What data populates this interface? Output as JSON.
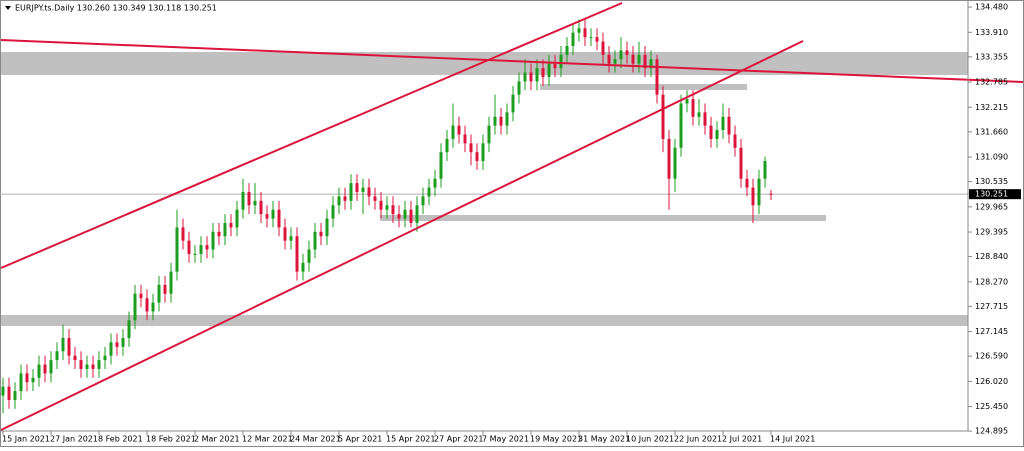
{
  "chart_data": {
    "type": "candlestick",
    "title": "EURJPY.ts.Daily  130.260 130.349 130.118 130.251",
    "bull_color": "#1e9c1e",
    "bear_color": "#dc143c",
    "ylim": [
      124.92,
      134.64
    ],
    "yticks": [
      {
        "value": 134.48,
        "label": "134.480"
      },
      {
        "value": 133.91,
        "label": "133.910"
      },
      133.355,
      132.785,
      132.215,
      {
        "value": 131.66,
        "label": "131.660"
      },
      {
        "value": 131.09,
        "label": "131.090"
      },
      130.535,
      129.965,
      129.395,
      {
        "value": 128.84,
        "label": "128.840"
      },
      {
        "value": 128.27,
        "label": "128.270"
      },
      127.715,
      127.145,
      {
        "value": 126.59,
        "label": "126.590"
      },
      {
        "value": 126.02,
        "label": "126.020"
      },
      {
        "value": 125.45,
        "label": "125.450"
      },
      124.895
    ],
    "categories": [
      "15 Jan 2021",
      null,
      null,
      null,
      null,
      null,
      null,
      null,
      "27 Jan 2021",
      null,
      null,
      null,
      null,
      null,
      null,
      null,
      "8 Feb 2021",
      null,
      null,
      null,
      null,
      null,
      null,
      null,
      "18 Feb 2021",
      null,
      null,
      null,
      null,
      null,
      null,
      null,
      "2 Mar 2021",
      null,
      null,
      null,
      null,
      null,
      null,
      null,
      "12 Mar 2021",
      null,
      null,
      null,
      null,
      null,
      null,
      null,
      "24 Mar 2021",
      null,
      null,
      null,
      null,
      null,
      null,
      null,
      "5 Apr 2021",
      null,
      null,
      null,
      null,
      null,
      null,
      null,
      "15 Apr 2021",
      null,
      null,
      null,
      null,
      null,
      null,
      null,
      "27 Apr 2021",
      null,
      null,
      null,
      null,
      null,
      null,
      null,
      "7 May 2021",
      null,
      null,
      null,
      null,
      null,
      null,
      null,
      "19 May 2021",
      null,
      null,
      null,
      null,
      null,
      null,
      null,
      "31 May 2021",
      null,
      null,
      null,
      null,
      null,
      null,
      null,
      "10 Jun 2021",
      null,
      null,
      null,
      null,
      null,
      null,
      null,
      "22 Jun 2021",
      null,
      null,
      null,
      null,
      null,
      null,
      null,
      "2 Jul 2021",
      null,
      null,
      null,
      null,
      null,
      null,
      null,
      "14 Jul 2021"
    ],
    "open": [
      125.7,
      125.9,
      125.6,
      125.8,
      126.2,
      126.0,
      126.1,
      126.4,
      126.2,
      126.5,
      126.7,
      127.0,
      126.6,
      126.5,
      126.3,
      126.4,
      126.3,
      126.5,
      126.6,
      126.9,
      126.8,
      127.0,
      127.4,
      128.0,
      127.9,
      127.6,
      127.8,
      128.2,
      128.0,
      128.5,
      129.5,
      129.2,
      128.9,
      128.9,
      129.1,
      129.0,
      129.4,
      129.3,
      129.6,
      129.5,
      129.9,
      130.3,
      130.0,
      130.1,
      129.8,
      129.7,
      129.9,
      129.5,
      129.2,
      129.3,
      128.5,
      128.7,
      129.0,
      129.4,
      129.3,
      129.7,
      130.0,
      130.2,
      130.1,
      130.5,
      130.3,
      130.4,
      130.2,
      130.1,
      129.9,
      130.0,
      129.8,
      129.7,
      129.9,
      129.6,
      130.0,
      130.2,
      130.4,
      130.6,
      131.2,
      131.5,
      131.8,
      131.6,
      131.4,
      131.2,
      131.0,
      131.4,
      131.8,
      132.0,
      131.8,
      132.1,
      132.5,
      132.8,
      133.0,
      132.8,
      133.1,
      132.9,
      133.2,
      133.1,
      133.4,
      133.6,
      133.9,
      134.0,
      133.8,
      133.8,
      133.7,
      133.4,
      133.2,
      133.3,
      133.5,
      133.4,
      133.2,
      133.4,
      133.1,
      133.3,
      132.5,
      131.5,
      130.6,
      131.3,
      132.3,
      132.4,
      132.0,
      132.1,
      131.8,
      131.5,
      131.7,
      132.0,
      131.6,
      131.3,
      130.6,
      130.4,
      130.0,
      130.6,
      130.26
    ],
    "high": [
      126.1,
      126.1,
      126.0,
      126.4,
      126.4,
      126.3,
      126.6,
      126.6,
      126.7,
      126.9,
      127.3,
      127.2,
      126.8,
      126.7,
      126.6,
      126.6,
      126.7,
      126.8,
      127.1,
      127.1,
      127.2,
      127.6,
      128.2,
      128.2,
      128.1,
      128.0,
      128.4,
      128.4,
      128.7,
      129.9,
      129.7,
      129.4,
      129.1,
      129.3,
      129.3,
      129.6,
      129.6,
      129.8,
      129.8,
      130.1,
      130.6,
      130.5,
      130.5,
      130.3,
      130.0,
      130.1,
      130.1,
      129.7,
      129.5,
      129.5,
      128.9,
      129.2,
      129.6,
      129.6,
      129.9,
      130.2,
      130.4,
      130.4,
      130.7,
      130.7,
      130.6,
      130.6,
      130.4,
      130.3,
      130.2,
      130.2,
      130.0,
      130.1,
      130.1,
      130.2,
      130.4,
      130.6,
      130.8,
      131.4,
      131.7,
      132.3,
      132.0,
      131.8,
      131.6,
      131.4,
      131.6,
      132.0,
      132.5,
      132.2,
      132.3,
      132.7,
      133.0,
      133.3,
      133.2,
      133.3,
      133.3,
      133.4,
      133.4,
      133.6,
      133.8,
      134.1,
      134.2,
      134.2,
      134.0,
      134.0,
      133.9,
      133.6,
      133.5,
      133.8,
      133.7,
      133.6,
      133.7,
      133.6,
      133.5,
      133.4,
      132.7,
      131.7,
      131.5,
      132.5,
      132.6,
      132.6,
      132.4,
      132.3,
      132.0,
      131.9,
      132.3,
      132.2,
      131.8,
      131.5,
      130.8,
      130.6,
      130.8,
      131.1,
      130.349
    ],
    "low": [
      125.3,
      125.4,
      125.4,
      125.6,
      125.8,
      125.8,
      125.9,
      126.0,
      126.0,
      126.3,
      126.5,
      126.4,
      126.3,
      126.1,
      126.1,
      126.1,
      126.1,
      126.3,
      126.4,
      126.6,
      126.6,
      126.8,
      127.2,
      127.7,
      127.4,
      127.4,
      127.6,
      127.8,
      127.8,
      128.3,
      129.0,
      128.7,
      128.7,
      128.7,
      128.8,
      128.8,
      129.1,
      129.1,
      129.3,
      129.3,
      129.7,
      129.8,
      129.8,
      129.6,
      129.5,
      129.5,
      129.3,
      129.0,
      129.0,
      128.3,
      128.3,
      128.5,
      128.8,
      129.1,
      129.1,
      129.5,
      129.8,
      129.9,
      129.9,
      130.1,
      129.8,
      130.0,
      129.9,
      129.7,
      129.7,
      129.6,
      129.5,
      129.5,
      129.5,
      129.4,
      129.8,
      130.0,
      130.2,
      130.4,
      131.0,
      131.3,
      131.4,
      131.2,
      130.9,
      130.8,
      130.8,
      131.2,
      131.6,
      131.6,
      131.6,
      131.9,
      132.3,
      132.6,
      132.6,
      132.6,
      132.7,
      132.7,
      132.9,
      132.9,
      133.2,
      133.4,
      133.7,
      133.6,
      133.6,
      133.5,
      133.2,
      133.0,
      133.0,
      133.1,
      133.2,
      133.0,
      133.0,
      132.9,
      132.9,
      132.3,
      131.2,
      129.9,
      130.3,
      131.1,
      132.1,
      131.8,
      131.8,
      131.6,
      131.3,
      131.3,
      131.5,
      131.4,
      131.1,
      130.4,
      130.2,
      129.6,
      129.8,
      130.4,
      130.118
    ],
    "close": [
      125.9,
      125.6,
      125.8,
      126.2,
      126.0,
      126.1,
      126.4,
      126.2,
      126.5,
      126.7,
      127.0,
      126.6,
      126.5,
      126.3,
      126.4,
      126.3,
      126.5,
      126.6,
      126.9,
      126.8,
      127.0,
      127.4,
      128.0,
      127.9,
      127.6,
      127.8,
      128.2,
      128.0,
      128.5,
      129.5,
      129.2,
      128.9,
      128.9,
      129.1,
      129.0,
      129.4,
      129.3,
      129.6,
      129.5,
      129.9,
      130.3,
      130.0,
      130.1,
      129.8,
      129.7,
      129.9,
      129.5,
      129.2,
      129.3,
      128.5,
      128.7,
      129.0,
      129.4,
      129.3,
      129.7,
      130.0,
      130.2,
      130.1,
      130.5,
      130.3,
      130.4,
      130.2,
      130.1,
      129.9,
      130.0,
      129.8,
      129.7,
      129.9,
      129.6,
      130.0,
      130.2,
      130.4,
      130.6,
      131.2,
      131.5,
      131.8,
      131.6,
      131.4,
      131.2,
      131.0,
      131.4,
      131.8,
      132.0,
      131.8,
      132.1,
      132.5,
      132.8,
      133.0,
      132.8,
      133.1,
      132.9,
      133.2,
      133.1,
      133.4,
      133.6,
      133.9,
      134.0,
      133.8,
      133.8,
      133.7,
      133.4,
      133.2,
      133.3,
      133.5,
      133.4,
      133.2,
      133.4,
      133.1,
      133.3,
      132.5,
      131.5,
      130.6,
      131.3,
      132.3,
      132.4,
      132.0,
      132.1,
      131.8,
      131.5,
      131.7,
      132.0,
      131.6,
      131.3,
      130.6,
      130.4,
      130.0,
      130.6,
      131.0,
      130.251
    ]
  }
}
